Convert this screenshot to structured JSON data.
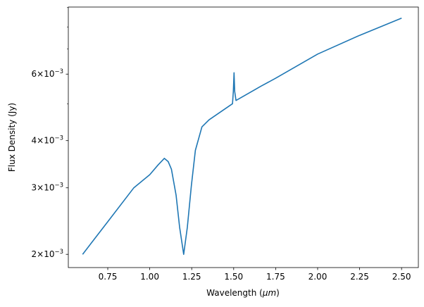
{
  "chart_data": {
    "type": "line",
    "title": "",
    "xlabel": "Wavelength (",
    "xlabel_unit": "μm",
    "xlabel_close": ")",
    "ylabel": "Flux Density (Jy)",
    "xlim": [
      0.515,
      2.6
    ],
    "ylim": [
      0.001845,
      0.00903
    ],
    "yscale": "log",
    "grid": false,
    "line_color": "#1f77b4",
    "xticks": [
      0.75,
      1.0,
      1.25,
      1.5,
      1.75,
      2.0,
      2.25,
      2.5
    ],
    "xtick_labels": [
      "0.75",
      "1.00",
      "1.25",
      "1.50",
      "1.75",
      "2.00",
      "2.25",
      "2.50"
    ],
    "yticks": [
      0.002,
      0.003,
      0.004,
      0.006
    ],
    "ytick_labels": [
      {
        "mant": "2",
        "exp": "−3"
      },
      {
        "mant": "3",
        "exp": "−3"
      },
      {
        "mant": "4",
        "exp": "−3"
      },
      {
        "mant": "6",
        "exp": "−3"
      }
    ],
    "yminor_ticks": [
      0.005,
      0.007,
      0.008,
      0.009
    ],
    "x": [
      0.6,
      0.75,
      0.905,
      1.0,
      1.05,
      1.087,
      1.11,
      1.129,
      1.157,
      1.178,
      1.202,
      1.224,
      1.248,
      1.272,
      1.311,
      1.353,
      1.493,
      1.498,
      1.502,
      1.506,
      1.514,
      1.661,
      1.75,
      2.0,
      2.25,
      2.5
    ],
    "y": [
      0.002,
      0.00244,
      0.003,
      0.00325,
      0.00345,
      0.00359,
      0.00352,
      0.00336,
      0.00287,
      0.00236,
      0.002,
      0.00236,
      0.00304,
      0.00377,
      0.00435,
      0.00454,
      0.00501,
      0.0054,
      0.00605,
      0.0054,
      0.00511,
      0.00557,
      0.00585,
      0.00678,
      0.0076,
      0.00844
    ]
  }
}
